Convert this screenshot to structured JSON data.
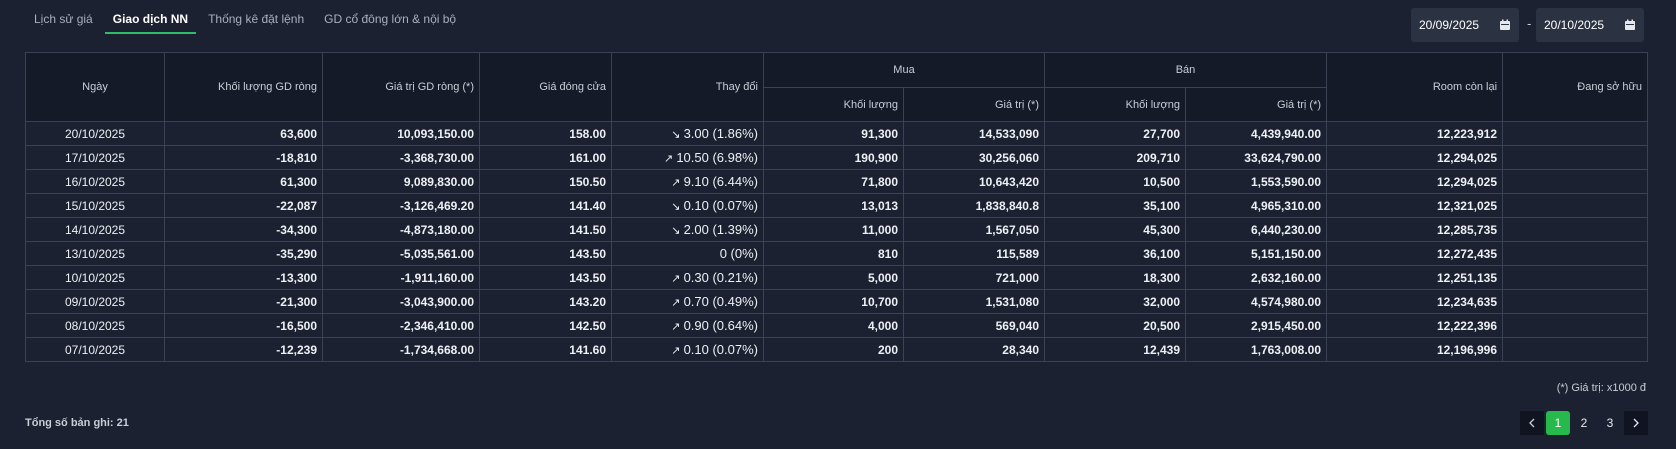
{
  "tabs": [
    {
      "label": "Lịch sử giá",
      "active": false
    },
    {
      "label": "Giao dịch NN",
      "active": true
    },
    {
      "label": "Thống kê đặt lệnh",
      "active": false
    },
    {
      "label": "GD cổ đông lớn & nội bộ",
      "active": false
    }
  ],
  "date_range": {
    "from": "20/09/2025",
    "separator": "-",
    "to": "20/10/2025"
  },
  "table": {
    "headers": {
      "date": "Ngày",
      "net_volume": "Khối lượng GD ròng",
      "net_value": "Giá trị GD ròng (*)",
      "close_price": "Giá đóng cửa",
      "change": "Thay đổi",
      "buy": "Mua",
      "sell": "Bán",
      "buy_volume": "Khối lượng",
      "buy_value": "Giá trị (*)",
      "sell_volume": "Khối lượng",
      "sell_value": "Giá trị (*)",
      "room_left": "Room còn lại",
      "holding": "Đang sở hữu"
    },
    "rows": [
      {
        "date": "20/10/2025",
        "net_volume": "63,600",
        "net_value": "10,093,150.00",
        "close": "158.00",
        "change": "3.00 (1.86%)",
        "dir": "down",
        "buy_vol": "91,300",
        "buy_val": "14,533,090",
        "sell_vol": "27,700",
        "sell_val": "4,439,940.00",
        "room": "12,223,912",
        "holding": ""
      },
      {
        "date": "17/10/2025",
        "net_volume": "-18,810",
        "net_value": "-3,368,730.00",
        "close": "161.00",
        "change": "10.50 (6.98%)",
        "dir": "up",
        "buy_vol": "190,900",
        "buy_val": "30,256,060",
        "sell_vol": "209,710",
        "sell_val": "33,624,790.00",
        "room": "12,294,025",
        "holding": ""
      },
      {
        "date": "16/10/2025",
        "net_volume": "61,300",
        "net_value": "9,089,830.00",
        "close": "150.50",
        "change": "9.10 (6.44%)",
        "dir": "up",
        "buy_vol": "71,800",
        "buy_val": "10,643,420",
        "sell_vol": "10,500",
        "sell_val": "1,553,590.00",
        "room": "12,294,025",
        "holding": ""
      },
      {
        "date": "15/10/2025",
        "net_volume": "-22,087",
        "net_value": "-3,126,469.20",
        "close": "141.40",
        "change": "0.10 (0.07%)",
        "dir": "down",
        "buy_vol": "13,013",
        "buy_val": "1,838,840.8",
        "sell_vol": "35,100",
        "sell_val": "4,965,310.00",
        "room": "12,321,025",
        "holding": ""
      },
      {
        "date": "14/10/2025",
        "net_volume": "-34,300",
        "net_value": "-4,873,180.00",
        "close": "141.50",
        "change": "2.00 (1.39%)",
        "dir": "down",
        "buy_vol": "11,000",
        "buy_val": "1,567,050",
        "sell_vol": "45,300",
        "sell_val": "6,440,230.00",
        "room": "12,285,735",
        "holding": ""
      },
      {
        "date": "13/10/2025",
        "net_volume": "-35,290",
        "net_value": "-5,035,561.00",
        "close": "143.50",
        "change": "0 (0%)",
        "dir": "flat",
        "buy_vol": "810",
        "buy_val": "115,589",
        "sell_vol": "36,100",
        "sell_val": "5,151,150.00",
        "room": "12,272,435",
        "holding": ""
      },
      {
        "date": "10/10/2025",
        "net_volume": "-13,300",
        "net_value": "-1,911,160.00",
        "close": "143.50",
        "change": "0.30 (0.21%)",
        "dir": "up",
        "buy_vol": "5,000",
        "buy_val": "721,000",
        "sell_vol": "18,300",
        "sell_val": "2,632,160.00",
        "room": "12,251,135",
        "holding": ""
      },
      {
        "date": "09/10/2025",
        "net_volume": "-21,300",
        "net_value": "-3,043,900.00",
        "close": "143.20",
        "change": "0.70 (0.49%)",
        "dir": "up",
        "buy_vol": "10,700",
        "buy_val": "1,531,080",
        "sell_vol": "32,000",
        "sell_val": "4,574,980.00",
        "room": "12,234,635",
        "holding": ""
      },
      {
        "date": "08/10/2025",
        "net_volume": "-16,500",
        "net_value": "-2,346,410.00",
        "close": "142.50",
        "change": "0.90 (0.64%)",
        "dir": "up",
        "buy_vol": "4,000",
        "buy_val": "569,040",
        "sell_vol": "20,500",
        "sell_val": "2,915,450.00",
        "room": "12,222,396",
        "holding": ""
      },
      {
        "date": "07/10/2025",
        "net_volume": "-12,239",
        "net_value": "-1,734,668.00",
        "close": "141.60",
        "change": "0.10 (0.07%)",
        "dir": "up",
        "buy_vol": "200",
        "buy_val": "28,340",
        "sell_vol": "12,439",
        "sell_val": "1,763,008.00",
        "room": "12,196,996",
        "holding": ""
      }
    ]
  },
  "note": "(*) Giá trị: x1000 đ",
  "total_records": "Tổng số bản ghi: 21",
  "pagination": {
    "pages": [
      "1",
      "2",
      "3"
    ],
    "current": "1",
    "prev_icon": "chevron-left-icon",
    "next_icon": "chevron-right-icon"
  },
  "colors": {
    "up": "#2fd15f",
    "down": "#f0333d",
    "flat": "#f2a11a",
    "accent": "#27b94b"
  }
}
